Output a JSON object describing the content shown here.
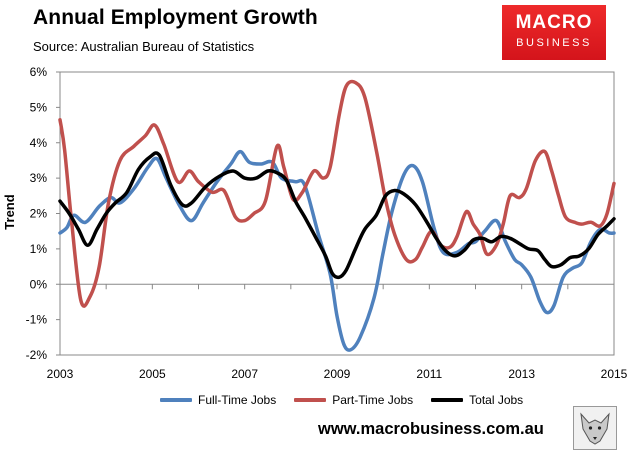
{
  "header": {
    "title": "Annual Employment Growth",
    "source": "Source: Australian Bureau of Statistics"
  },
  "logo": {
    "line1": "MACRO",
    "line2": "BUSINESS"
  },
  "footer": {
    "url": "www.macrobusiness.com.au"
  },
  "colors": {
    "fulltime": "#4f81bd",
    "parttime": "#c0504d",
    "total": "#000000",
    "logo_red": "#e3191e"
  },
  "chart_data": {
    "type": "line",
    "ylabel": "Trend",
    "xlabel": "",
    "xlim": [
      2003,
      2015
    ],
    "ylim": [
      -2,
      6
    ],
    "x_ticks": [
      "2003",
      "2005",
      "2007",
      "2009",
      "2011",
      "2013",
      "2015"
    ],
    "y_ticks": [
      "-2%",
      "-1%",
      "0%",
      "1%",
      "2%",
      "3%",
      "4%",
      "5%",
      "6%"
    ],
    "grid": false,
    "legend_position": "bottom",
    "series": [
      {
        "name": "Full-Time Jobs",
        "x": [
          2003,
          2003.15,
          2003.3,
          2003.55,
          2003.85,
          2004.1,
          2004.3,
          2004.6,
          2004.9,
          2005.1,
          2005.3,
          2005.6,
          2005.85,
          2006.1,
          2006.4,
          2006.7,
          2006.9,
          2007.1,
          2007.35,
          2007.6,
          2007.8,
          2008.1,
          2008.3,
          2008.6,
          2008.85,
          2009.0,
          2009.15,
          2009.3,
          2009.5,
          2009.8,
          2010.0,
          2010.2,
          2010.45,
          2010.65,
          2010.85,
          2011.1,
          2011.3,
          2011.6,
          2011.85,
          2012.0,
          2012.2,
          2012.45,
          2012.65,
          2012.85,
          2013.0,
          2013.2,
          2013.4,
          2013.55,
          2013.7,
          2013.9,
          2014.1,
          2014.3,
          2014.5,
          2014.7,
          2014.9,
          2015.0
        ],
        "values": [
          1.45,
          1.6,
          1.95,
          1.75,
          2.2,
          2.45,
          2.3,
          2.7,
          3.3,
          3.55,
          3.0,
          2.2,
          1.8,
          2.3,
          2.9,
          3.4,
          3.75,
          3.45,
          3.4,
          3.45,
          3.0,
          2.9,
          2.8,
          1.4,
          0.3,
          -0.9,
          -1.7,
          -1.85,
          -1.5,
          -0.4,
          0.9,
          2.1,
          3.1,
          3.35,
          2.9,
          1.6,
          0.9,
          0.9,
          1.15,
          1.2,
          1.5,
          1.8,
          1.2,
          0.7,
          0.55,
          0.2,
          -0.5,
          -0.8,
          -0.6,
          0.2,
          0.45,
          0.6,
          1.2,
          1.55,
          1.45,
          1.45
        ]
      },
      {
        "name": "Part-Time Jobs",
        "x": [
          2003,
          2003.1,
          2003.25,
          2003.45,
          2003.65,
          2003.85,
          2004.05,
          2004.3,
          2004.6,
          2004.85,
          2005.05,
          2005.25,
          2005.55,
          2005.8,
          2006.0,
          2006.3,
          2006.55,
          2006.8,
          2007.0,
          2007.2,
          2007.45,
          2007.7,
          2007.85,
          2008.05,
          2008.25,
          2008.5,
          2008.7,
          2008.85,
          2009.05,
          2009.2,
          2009.4,
          2009.6,
          2009.85,
          2010.05,
          2010.25,
          2010.5,
          2010.7,
          2010.85,
          2011.05,
          2011.25,
          2011.45,
          2011.6,
          2011.8,
          2011.95,
          2012.1,
          2012.25,
          2012.45,
          2012.6,
          2012.75,
          2012.95,
          2013.1,
          2013.3,
          2013.5,
          2013.65,
          2013.8,
          2013.95,
          2014.15,
          2014.3,
          2014.5,
          2014.7,
          2014.85,
          2015.0
        ],
        "values": [
          4.65,
          3.8,
          1.8,
          -0.45,
          -0.35,
          0.5,
          2.3,
          3.5,
          3.9,
          4.2,
          4.5,
          3.95,
          2.9,
          3.2,
          2.9,
          2.6,
          2.65,
          1.9,
          1.8,
          2.0,
          2.35,
          3.9,
          3.3,
          2.4,
          2.6,
          3.2,
          3.0,
          3.3,
          4.8,
          5.6,
          5.7,
          5.3,
          3.8,
          2.4,
          1.4,
          0.7,
          0.7,
          1.05,
          1.5,
          1.1,
          1.05,
          1.35,
          2.05,
          1.7,
          1.4,
          0.85,
          1.1,
          1.7,
          2.5,
          2.45,
          2.7,
          3.5,
          3.75,
          3.2,
          2.5,
          1.9,
          1.75,
          1.7,
          1.75,
          1.65,
          2.0,
          2.85
        ]
      },
      {
        "name": "Total Jobs",
        "x": [
          2003,
          2003.2,
          2003.4,
          2003.6,
          2003.8,
          2004.0,
          2004.2,
          2004.45,
          2004.7,
          2004.95,
          2005.15,
          2005.4,
          2005.65,
          2005.85,
          2006.15,
          2006.45,
          2006.75,
          2007.0,
          2007.25,
          2007.5,
          2007.7,
          2007.9,
          2008.1,
          2008.3,
          2008.55,
          2008.75,
          2008.9,
          2009.05,
          2009.2,
          2009.4,
          2009.6,
          2009.85,
          2010.05,
          2010.25,
          2010.45,
          2010.7,
          2010.95,
          2011.15,
          2011.35,
          2011.55,
          2011.75,
          2011.95,
          2012.15,
          2012.35,
          2012.55,
          2012.75,
          2012.95,
          2013.15,
          2013.35,
          2013.5,
          2013.65,
          2013.85,
          2014.05,
          2014.25,
          2014.45,
          2014.65,
          2014.85,
          2015.0
        ],
        "values": [
          2.35,
          2.0,
          1.55,
          1.1,
          1.55,
          2.0,
          2.3,
          2.6,
          3.25,
          3.6,
          3.65,
          2.8,
          2.25,
          2.3,
          2.75,
          3.05,
          3.2,
          3.0,
          3.0,
          3.2,
          3.15,
          2.95,
          2.35,
          1.9,
          1.3,
          0.8,
          0.3,
          0.2,
          0.4,
          1.0,
          1.55,
          1.95,
          2.5,
          2.65,
          2.55,
          2.25,
          1.75,
          1.3,
          0.95,
          0.8,
          0.95,
          1.25,
          1.3,
          1.2,
          1.35,
          1.3,
          1.15,
          1.0,
          0.95,
          0.7,
          0.5,
          0.55,
          0.75,
          0.8,
          1.0,
          1.4,
          1.65,
          1.85
        ]
      }
    ]
  }
}
